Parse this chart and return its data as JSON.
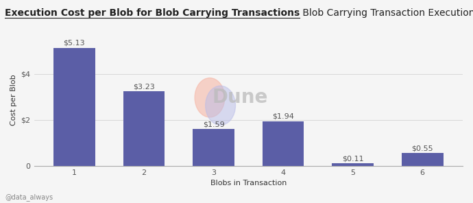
{
  "title_bold": "Execution Cost per Blob for Blob Carrying Transactions",
  "title_normal": " Blob Carrying Transaction Execution Fees",
  "xlabel": "Blobs in Transaction",
  "ylabel": "Cost per Blob",
  "categories": [
    1,
    2,
    3,
    4,
    5,
    6
  ],
  "values": [
    5.13,
    3.23,
    1.59,
    1.94,
    0.11,
    0.55
  ],
  "labels": [
    "$5.13",
    "$3.23",
    "$1.59",
    "$1.94",
    "$0.11",
    "$0.55"
  ],
  "bar_color": "#5B5EA6",
  "background_color": "#f5f5f5",
  "yticks": [
    0,
    2,
    4
  ],
  "ytick_labels": [
    "0",
    "$2",
    "$4"
  ],
  "ylim": [
    0,
    5.7
  ],
  "watermark_text": "Dune",
  "footer_text": "@data_always",
  "title_fontsize": 10,
  "label_fontsize": 8,
  "tick_fontsize": 8,
  "bar_width": 0.6
}
